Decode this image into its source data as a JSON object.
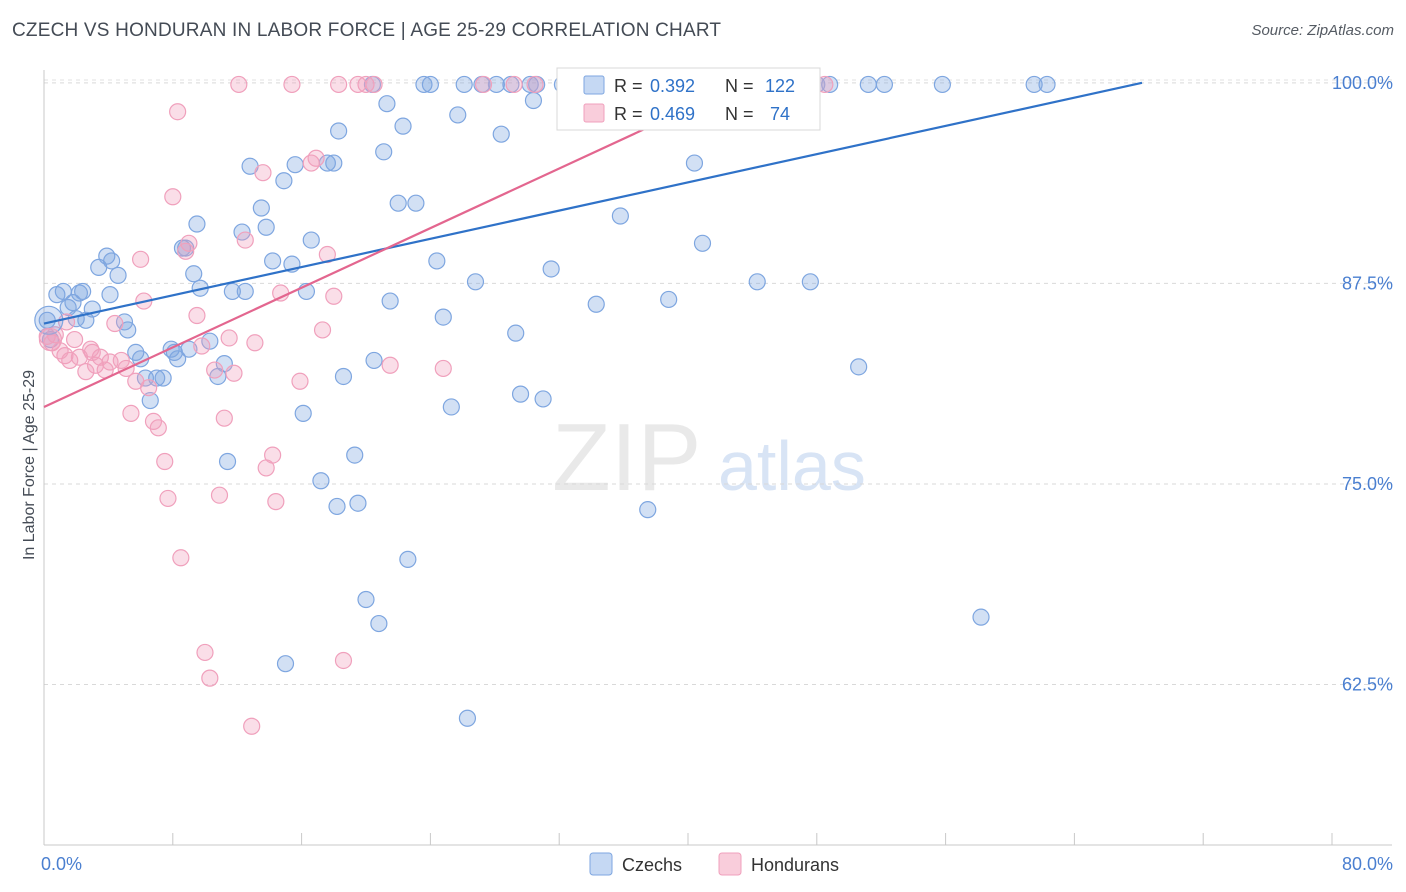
{
  "header": {
    "title": "CZECH VS HONDURAN IN LABOR FORCE | AGE 25-29 CORRELATION CHART",
    "source": "Source: ZipAtlas.com"
  },
  "watermark": {
    "zip": "ZIP",
    "atlas": "atlas"
  },
  "legend_box": {
    "rows": [
      {
        "r_label": "R = ",
        "r_value": "0.392",
        "n_label": "N = ",
        "n_value": "122",
        "color": "#7ea6e0"
      },
      {
        "r_label": "R = ",
        "r_value": "0.469",
        "n_label": "N = ",
        "n_value": " 74",
        "color": "#f0a0bc"
      }
    ]
  },
  "bottom_legend": [
    {
      "label": "Czechs",
      "color": "#7ea6e0"
    },
    {
      "label": "Hondurans",
      "color": "#f0a0bc"
    }
  ],
  "chart_data": {
    "type": "scatter",
    "title": "CZECH VS HONDURAN IN LABOR FORCE | AGE 25-29 CORRELATION CHART",
    "xlabel": "",
    "ylabel": "In Labor Force | Age 25-29",
    "xlim": [
      0,
      80
    ],
    "ylim": [
      52.5,
      100.8
    ],
    "x_tick_labels": [
      {
        "value": 0,
        "label": "0.0%"
      },
      {
        "value": 80,
        "label": "80.0%"
      }
    ],
    "y_tick_labels": [
      {
        "value": 100,
        "label": "100.0%"
      },
      {
        "value": 87.5,
        "label": "87.5%"
      },
      {
        "value": 75,
        "label": "75.0%"
      },
      {
        "value": 62.5,
        "label": "62.5%"
      }
    ],
    "grid": true,
    "legend": "bottom",
    "series": [
      {
        "name": "Czechs",
        "color": "#7ea6e0",
        "line_color": "#2f72c8",
        "stats": {
          "R": 0.392,
          "N": 122
        },
        "trend": [
          [
            0,
            85.0
          ],
          [
            68.2,
            100.0
          ]
        ],
        "points": [
          [
            0.2,
            85.2
          ],
          [
            0.4,
            84.0
          ],
          [
            0.8,
            86.8
          ],
          [
            1.2,
            87.0
          ],
          [
            1.5,
            86.0
          ],
          [
            1.8,
            86.3
          ],
          [
            2.0,
            85.3
          ],
          [
            2.4,
            87.0
          ],
          [
            2.6,
            85.2
          ],
          [
            3.4,
            88.5
          ],
          [
            3.9,
            89.2
          ],
          [
            4.2,
            88.9
          ],
          [
            4.6,
            88.0
          ],
          [
            4.1,
            86.8
          ],
          [
            5.0,
            85.1
          ],
          [
            5.2,
            84.6
          ],
          [
            5.7,
            83.2
          ],
          [
            6.0,
            82.8
          ],
          [
            6.3,
            81.6
          ],
          [
            6.6,
            80.2
          ],
          [
            7.0,
            81.6
          ],
          [
            7.4,
            81.6
          ],
          [
            8.1,
            83.2
          ],
          [
            8.3,
            82.8
          ],
          [
            8.6,
            89.7
          ],
          [
            8.8,
            89.7
          ],
          [
            9.3,
            88.1
          ],
          [
            9.7,
            87.2
          ],
          [
            9.0,
            83.4
          ],
          [
            10.3,
            83.9
          ],
          [
            10.8,
            81.7
          ],
          [
            11.2,
            82.5
          ],
          [
            11.4,
            76.4
          ],
          [
            11.7,
            87.0
          ],
          [
            12.5,
            87.0
          ],
          [
            12.3,
            90.7
          ],
          [
            12.8,
            94.8
          ],
          [
            13.5,
            92.2
          ],
          [
            13.8,
            91.0
          ],
          [
            14.2,
            88.9
          ],
          [
            14.9,
            93.9
          ],
          [
            15.4,
            88.7
          ],
          [
            15.6,
            94.9
          ],
          [
            16.1,
            79.4
          ],
          [
            16.3,
            87.0
          ],
          [
            16.6,
            90.2
          ],
          [
            17.2,
            75.2
          ],
          [
            17.6,
            95.0
          ],
          [
            18.0,
            95.0
          ],
          [
            18.2,
            73.6
          ],
          [
            18.3,
            97.0
          ],
          [
            18.6,
            81.7
          ],
          [
            19.3,
            76.8
          ],
          [
            19.5,
            73.8
          ],
          [
            20.0,
            67.8
          ],
          [
            20.5,
            82.7
          ],
          [
            20.8,
            66.3
          ],
          [
            20.4,
            99.9
          ],
          [
            21.1,
            95.7
          ],
          [
            21.3,
            98.7
          ],
          [
            21.5,
            86.4
          ],
          [
            22.0,
            92.5
          ],
          [
            22.3,
            97.3
          ],
          [
            22.6,
            70.3
          ],
          [
            23.1,
            92.5
          ],
          [
            23.6,
            99.9
          ],
          [
            24.0,
            99.9
          ],
          [
            24.4,
            88.9
          ],
          [
            24.8,
            85.4
          ],
          [
            25.3,
            79.8
          ],
          [
            25.7,
            98.0
          ],
          [
            26.1,
            99.9
          ],
          [
            26.3,
            60.4
          ],
          [
            26.8,
            87.6
          ],
          [
            27.2,
            99.9
          ],
          [
            28.1,
            99.9
          ],
          [
            28.4,
            96.8
          ],
          [
            29.0,
            99.9
          ],
          [
            29.3,
            84.4
          ],
          [
            29.6,
            80.6
          ],
          [
            30.2,
            99.9
          ],
          [
            30.6,
            99.9
          ],
          [
            30.4,
            98.9
          ],
          [
            31.0,
            80.3
          ],
          [
            31.5,
            88.4
          ],
          [
            32.2,
            99.9
          ],
          [
            33.8,
            99.9
          ],
          [
            34.3,
            86.2
          ],
          [
            35.1,
            99.9
          ],
          [
            35.8,
            91.7
          ],
          [
            37.2,
            99.9
          ],
          [
            37.5,
            73.4
          ],
          [
            38.8,
            86.5
          ],
          [
            39.2,
            99.9
          ],
          [
            40.4,
            95.0
          ],
          [
            40.9,
            90.0
          ],
          [
            41.6,
            99.9
          ],
          [
            43.0,
            99.9
          ],
          [
            44.3,
            87.6
          ],
          [
            44.8,
            99.9
          ],
          [
            46.0,
            99.9
          ],
          [
            47.6,
            87.6
          ],
          [
            48.0,
            99.9
          ],
          [
            48.8,
            99.9
          ],
          [
            50.6,
            82.3
          ],
          [
            51.2,
            99.9
          ],
          [
            52.2,
            99.9
          ],
          [
            55.8,
            99.9
          ],
          [
            58.2,
            66.7
          ],
          [
            61.5,
            99.9
          ],
          [
            62.3,
            99.9
          ],
          [
            36.2,
            99.9
          ],
          [
            33.5,
            99.9
          ],
          [
            9.5,
            91.2
          ],
          [
            7.9,
            83.4
          ],
          [
            3.0,
            85.9
          ],
          [
            2.2,
            86.9
          ],
          [
            15.0,
            63.8
          ]
        ]
      },
      {
        "name": "Hondurans",
        "color": "#f0a0bc",
        "line_color": "#e3668f",
        "stats": {
          "R": 0.469,
          "N": 74
        },
        "trend": [
          [
            0,
            79.8
          ],
          [
            43.5,
            100.0
          ]
        ],
        "points": [
          [
            0.2,
            84.2
          ],
          [
            0.5,
            83.8
          ],
          [
            0.7,
            84.3
          ],
          [
            1.0,
            83.3
          ],
          [
            1.3,
            83.0
          ],
          [
            1.6,
            82.7
          ],
          [
            1.9,
            84.0
          ],
          [
            2.2,
            82.9
          ],
          [
            2.6,
            82.0
          ],
          [
            2.9,
            83.4
          ],
          [
            3.2,
            82.4
          ],
          [
            3.5,
            82.9
          ],
          [
            3.8,
            82.1
          ],
          [
            4.1,
            82.6
          ],
          [
            4.4,
            85.0
          ],
          [
            4.8,
            82.7
          ],
          [
            5.1,
            82.2
          ],
          [
            5.4,
            79.4
          ],
          [
            5.7,
            81.4
          ],
          [
            6.0,
            89.0
          ],
          [
            6.2,
            86.4
          ],
          [
            6.5,
            81.0
          ],
          [
            6.8,
            78.9
          ],
          [
            7.1,
            78.5
          ],
          [
            7.5,
            76.4
          ],
          [
            7.7,
            74.1
          ],
          [
            8.0,
            92.9
          ],
          [
            8.3,
            98.2
          ],
          [
            8.5,
            70.4
          ],
          [
            8.8,
            89.5
          ],
          [
            9.0,
            90.0
          ],
          [
            9.5,
            85.5
          ],
          [
            9.8,
            83.6
          ],
          [
            10.0,
            64.5
          ],
          [
            10.3,
            62.9
          ],
          [
            10.6,
            82.1
          ],
          [
            10.9,
            74.3
          ],
          [
            11.2,
            79.1
          ],
          [
            11.5,
            84.1
          ],
          [
            11.8,
            81.9
          ],
          [
            12.1,
            99.9
          ],
          [
            12.5,
            90.2
          ],
          [
            12.9,
            59.9
          ],
          [
            13.1,
            83.8
          ],
          [
            13.6,
            94.4
          ],
          [
            13.8,
            76.0
          ],
          [
            14.2,
            76.8
          ],
          [
            14.4,
            73.9
          ],
          [
            14.7,
            86.9
          ],
          [
            15.4,
            99.9
          ],
          [
            15.9,
            81.4
          ],
          [
            16.6,
            95.0
          ],
          [
            16.9,
            95.3
          ],
          [
            17.3,
            84.6
          ],
          [
            17.6,
            89.3
          ],
          [
            18.0,
            86.7
          ],
          [
            18.3,
            99.9
          ],
          [
            18.6,
            64.0
          ],
          [
            19.5,
            99.9
          ],
          [
            20.0,
            99.9
          ],
          [
            20.5,
            99.9
          ],
          [
            21.5,
            82.4
          ],
          [
            24.8,
            82.2
          ],
          [
            27.3,
            99.9
          ],
          [
            29.2,
            99.9
          ],
          [
            30.5,
            99.9
          ],
          [
            34.5,
            99.9
          ],
          [
            37.2,
            99.9
          ],
          [
            40.2,
            99.9
          ],
          [
            41.6,
            99.9
          ],
          [
            44.8,
            99.9
          ],
          [
            48.5,
            99.9
          ],
          [
            1.4,
            85.1
          ],
          [
            3.0,
            83.2
          ]
        ]
      }
    ]
  }
}
